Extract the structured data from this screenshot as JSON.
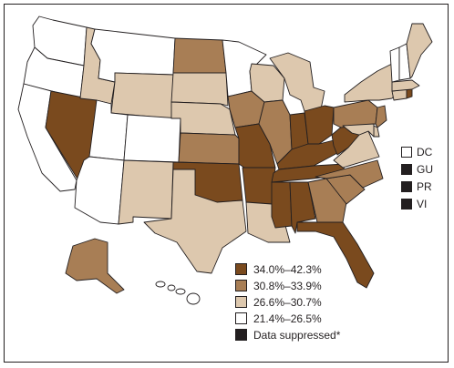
{
  "colors": {
    "dark": "#7a4a1e",
    "medium": "#a87e55",
    "light": "#ddc8ae",
    "white": "#ffffff",
    "suppressed": "#231f20",
    "border": "#231f20"
  },
  "legend": [
    {
      "label": "34.0%–42.3%",
      "color": "#7a4a1e"
    },
    {
      "label": "30.8%–33.9%",
      "color": "#a87e55"
    },
    {
      "label": "26.6%–30.7%",
      "color": "#ddc8ae"
    },
    {
      "label": "21.4%–26.5%",
      "color": "#ffffff"
    },
    {
      "label": "Data suppressed*",
      "color": "#231f20"
    }
  ],
  "territories": [
    {
      "label": "DC",
      "color": "#ffffff"
    },
    {
      "label": "GU",
      "color": "#231f20"
    },
    {
      "label": "PR",
      "color": "#231f20"
    },
    {
      "label": "VI",
      "color": "#231f20"
    }
  ]
}
